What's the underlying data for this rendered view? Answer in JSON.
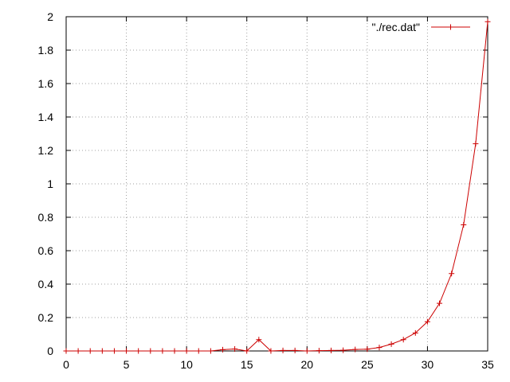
{
  "chart_data": {
    "type": "line",
    "title": "",
    "xlabel": "",
    "ylabel": "",
    "xlim": [
      0,
      35
    ],
    "ylim": [
      0,
      2
    ],
    "grid": true,
    "legend": "top-right",
    "xticks": [
      "0",
      "5",
      "10",
      "15",
      "20",
      "25",
      "30",
      "35"
    ],
    "yticks": [
      "0",
      "0.2",
      "0.4",
      "0.6",
      "0.8",
      "1",
      "1.2",
      "1.4",
      "1.6",
      "1.8",
      "2"
    ],
    "series": [
      {
        "name": "\"./rec.dat\"",
        "color": "#cc0000",
        "marker": "plus",
        "x": [
          0,
          1,
          2,
          3,
          4,
          5,
          6,
          7,
          8,
          9,
          10,
          11,
          12,
          13,
          14,
          15,
          16,
          17,
          18,
          19,
          20,
          21,
          22,
          23,
          24,
          25,
          26,
          27,
          28,
          29,
          30,
          31,
          32,
          33,
          34,
          35
        ],
        "y": [
          0,
          0,
          0,
          0,
          0,
          0,
          0,
          0,
          0,
          0,
          0,
          0,
          0,
          0.008,
          0.012,
          0,
          0.068,
          0,
          0.003,
          0.003,
          0,
          0.002,
          0.003,
          0.004,
          0.009,
          0.011,
          0.021,
          0.041,
          0.068,
          0.108,
          0.175,
          0.285,
          0.463,
          0.755,
          1.24,
          1.97
        ]
      }
    ]
  }
}
